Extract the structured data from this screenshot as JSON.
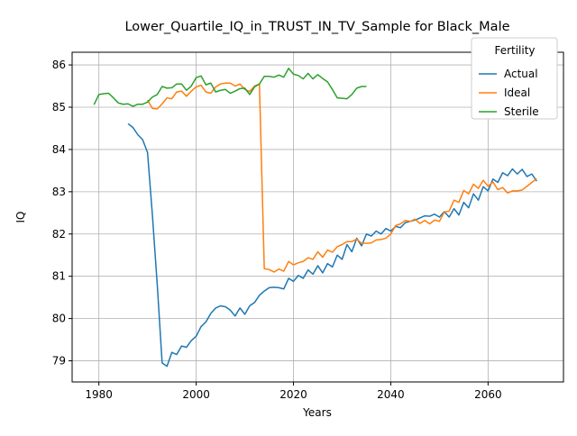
{
  "chart_data": {
    "type": "line",
    "title": "Lower_Quartile_IQ_in_TRUST_IN_TV_Sample for Black_Male",
    "xlabel": "Years",
    "ylabel": "IQ",
    "xlim": [
      1974.5,
      2075.5
    ],
    "ylim": [
      78.5,
      86.3
    ],
    "xticks": [
      1980,
      2000,
      2020,
      2040,
      2060
    ],
    "yticks": [
      79,
      80,
      81,
      82,
      83,
      84,
      85,
      86
    ],
    "grid": true,
    "legend": {
      "title": "Fertility",
      "location": "top-right"
    },
    "series": [
      {
        "name": "Actual",
        "color": "#1f77b4",
        "x": [
          1986,
          1987,
          1988,
          1989,
          1990,
          1991,
          1992,
          1993,
          1994,
          1995,
          1996,
          1997,
          1998,
          1999,
          2000,
          2001,
          2002,
          2003,
          2004,
          2005,
          2006,
          2007,
          2008,
          2009,
          2010,
          2011,
          2012,
          2013,
          2014,
          2015,
          2016,
          2017,
          2018,
          2019,
          2020,
          2021,
          2022,
          2023,
          2024,
          2025,
          2026,
          2027,
          2028,
          2029,
          2030,
          2031,
          2032,
          2033,
          2034,
          2035,
          2036,
          2037,
          2038,
          2039,
          2040,
          2041,
          2042,
          2043,
          2044,
          2045,
          2046,
          2047,
          2048,
          2049,
          2050,
          2051,
          2052,
          2053,
          2054,
          2055,
          2056,
          2057,
          2058,
          2059,
          2060,
          2061,
          2062,
          2063,
          2064,
          2065,
          2066,
          2067,
          2068,
          2069,
          2070
        ],
        "values": [
          84.61,
          84.52,
          84.35,
          84.23,
          83.93,
          82.45,
          80.8,
          78.95,
          78.87,
          79.2,
          79.15,
          79.35,
          79.32,
          79.48,
          79.58,
          79.81,
          79.92,
          80.12,
          80.25,
          80.3,
          80.28,
          80.2,
          80.06,
          80.25,
          80.1,
          80.3,
          80.38,
          80.55,
          80.65,
          80.73,
          80.74,
          80.73,
          80.7,
          80.95,
          80.88,
          81.02,
          80.95,
          81.15,
          81.05,
          81.25,
          81.08,
          81.3,
          81.22,
          81.5,
          81.4,
          81.75,
          81.58,
          81.9,
          81.72,
          82.0,
          81.95,
          82.07,
          82.0,
          82.13,
          82.07,
          82.18,
          82.15,
          82.27,
          82.3,
          82.33,
          82.38,
          82.43,
          82.42,
          82.47,
          82.4,
          82.53,
          82.4,
          82.6,
          82.45,
          82.75,
          82.62,
          82.95,
          82.8,
          83.12,
          83.02,
          83.3,
          83.22,
          83.45,
          83.38,
          83.54,
          83.42,
          83.53,
          83.36,
          83.42,
          83.25
        ]
      },
      {
        "name": "Ideal",
        "color": "#ff7f0e",
        "x": [
          1990,
          1991,
          1992,
          1993,
          1994,
          1995,
          1996,
          1997,
          1998,
          1999,
          2000,
          2001,
          2002,
          2003,
          2004,
          2005,
          2006,
          2007,
          2008,
          2009,
          2010,
          2011,
          2012,
          2013,
          2014,
          2015,
          2016,
          2017,
          2018,
          2019,
          2020,
          2021,
          2022,
          2023,
          2024,
          2025,
          2026,
          2027,
          2028,
          2029,
          2030,
          2031,
          2032,
          2033,
          2034,
          2035,
          2036,
          2037,
          2038,
          2039,
          2040,
          2041,
          2042,
          2043,
          2044,
          2045,
          2046,
          2047,
          2048,
          2049,
          2050,
          2051,
          2052,
          2053,
          2054,
          2055,
          2056,
          2057,
          2058,
          2059,
          2060,
          2061,
          2062,
          2063,
          2064,
          2065,
          2066,
          2067,
          2068,
          2069,
          2070
        ],
        "values": [
          85.17,
          84.97,
          84.96,
          85.08,
          85.22,
          85.2,
          85.36,
          85.38,
          85.26,
          85.38,
          85.48,
          85.52,
          85.36,
          85.33,
          85.48,
          85.55,
          85.57,
          85.57,
          85.5,
          85.55,
          85.42,
          85.37,
          85.5,
          85.55,
          81.18,
          81.16,
          81.1,
          81.17,
          81.12,
          81.35,
          81.27,
          81.32,
          81.35,
          81.44,
          81.4,
          81.58,
          81.45,
          81.62,
          81.57,
          81.7,
          81.75,
          81.82,
          81.82,
          81.88,
          81.78,
          81.78,
          81.79,
          81.86,
          81.87,
          81.9,
          82.0,
          82.2,
          82.24,
          82.32,
          82.3,
          82.35,
          82.25,
          82.32,
          82.24,
          82.33,
          82.3,
          82.52,
          82.54,
          82.8,
          82.75,
          83.03,
          82.95,
          83.18,
          83.08,
          83.27,
          83.13,
          83.23,
          83.05,
          83.1,
          82.97,
          83.02,
          83.02,
          83.04,
          83.13,
          83.22,
          83.31
        ]
      },
      {
        "name": "Sterile",
        "color": "#2ca02c",
        "x": [
          1979,
          1980,
          1981,
          1982,
          1983,
          1984,
          1985,
          1986,
          1987,
          1988,
          1989,
          1990,
          1991,
          1992,
          1993,
          1994,
          1995,
          1996,
          1997,
          1998,
          1999,
          2000,
          2001,
          2002,
          2003,
          2004,
          2005,
          2006,
          2007,
          2008,
          2009,
          2010,
          2011,
          2012,
          2013,
          2014,
          2015,
          2016,
          2017,
          2018,
          2019,
          2020,
          2021,
          2022,
          2023,
          2024,
          2025,
          2026,
          2027,
          2028,
          2029,
          2030,
          2031,
          2032,
          2033,
          2034,
          2035
        ],
        "values": [
          85.06,
          85.3,
          85.32,
          85.33,
          85.22,
          85.1,
          85.07,
          85.08,
          85.02,
          85.07,
          85.07,
          85.12,
          85.24,
          85.3,
          85.49,
          85.45,
          85.46,
          85.55,
          85.55,
          85.4,
          85.5,
          85.7,
          85.74,
          85.53,
          85.57,
          85.36,
          85.4,
          85.42,
          85.33,
          85.38,
          85.44,
          85.45,
          85.3,
          85.48,
          85.55,
          85.73,
          85.73,
          85.71,
          85.76,
          85.71,
          85.92,
          85.78,
          85.75,
          85.67,
          85.8,
          85.67,
          85.77,
          85.68,
          85.6,
          85.42,
          85.22,
          85.21,
          85.2,
          85.3,
          85.45,
          85.49,
          85.49
        ]
      }
    ]
  }
}
